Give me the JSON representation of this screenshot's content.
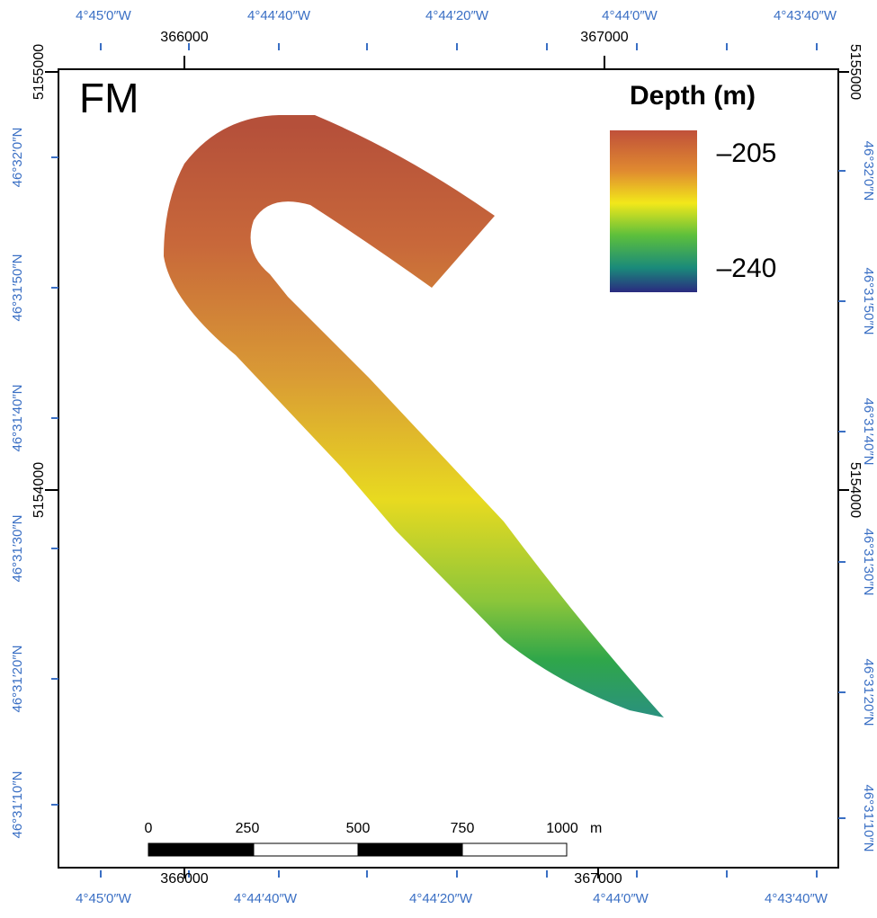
{
  "header": {
    "label": "FM"
  },
  "legend": {
    "title": "Depth (m)",
    "ticks": [
      "–205",
      "–240"
    ]
  },
  "top_lon_labels": [
    "4°45′0″W",
    "4°44′40″W",
    "4°44′20″W",
    "4°44′0″W",
    "4°43′40″W"
  ],
  "top_utm_labels": [
    "366000",
    "367000"
  ],
  "left_utm_labels": [
    "5155000",
    "5154000"
  ],
  "left_lat_labels": [
    "46°32′0″N",
    "46°31′50″N",
    "46°31′40″N",
    "46°31′30″N",
    "46°31′20″N",
    "46°31′10″N"
  ],
  "right_utm_labels": [
    "5155000",
    "5154000"
  ],
  "right_lat_labels": [
    "46°32′0″N",
    "46°31′50″N",
    "46°31′40″N",
    "46°31′30″N",
    "46°31′20″N",
    "46°31′10″N"
  ],
  "bottom_utm_labels": [
    "366000",
    "367000"
  ],
  "bottom_lon_labels": [
    "4°45′0″W",
    "4°44′40″W",
    "4°44′20″W",
    "4°44′0″W",
    "4°43′40″W"
  ],
  "scale_bar": {
    "labels": [
      "0",
      "250",
      "500",
      "750",
      "1000"
    ],
    "unit": "m"
  }
}
